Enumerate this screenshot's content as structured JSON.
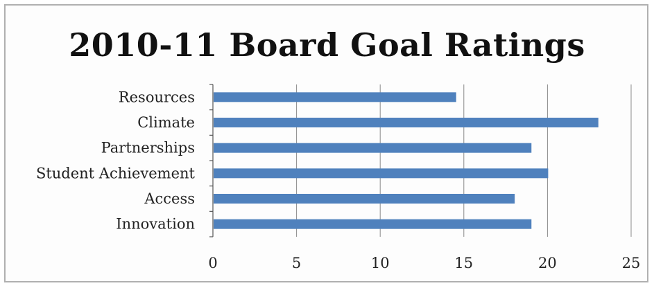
{
  "chart_data": {
    "type": "bar",
    "orientation": "horizontal",
    "title": "2010-11 Board Goal Ratings",
    "categories": [
      "Resources",
      "Climate",
      "Partnerships",
      "Student Achievement",
      "Access",
      "Innovation"
    ],
    "values": [
      14.5,
      23,
      19,
      20,
      18,
      19
    ],
    "xlim": [
      0,
      25
    ],
    "xticks": [
      0,
      5,
      10,
      15,
      20,
      25
    ],
    "xlabel": "",
    "ylabel": "",
    "grid": "vertical",
    "legend": "none",
    "bar_color": "#4f81bd"
  }
}
